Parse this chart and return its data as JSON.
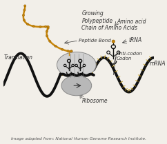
{
  "bg_color": "#f2efe9",
  "title_bottom": "Image adapted from: National Human Genome Research Institute.",
  "labels": {
    "growing_chain": "Growing\nPolypeptide\nChain of Amino Acids",
    "peptide_bond": "Peptide Bond",
    "translation": "Translation",
    "amino_acid": "Amino acid",
    "trna": "tRNA",
    "anti_codon": "Anti-codon\nCodon",
    "mrna": "mRNA",
    "ribosome": "Ribosome"
  },
  "mrna_color": "#111111",
  "polypeptide_color": "#c8860a",
  "ribosome_large_color": "#d0d0d0",
  "ribosome_small_color": "#b8b8b8",
  "trna_color": "#111111",
  "text_color": "#333333",
  "font_size": 5.5,
  "caption_font_size": 4.2
}
